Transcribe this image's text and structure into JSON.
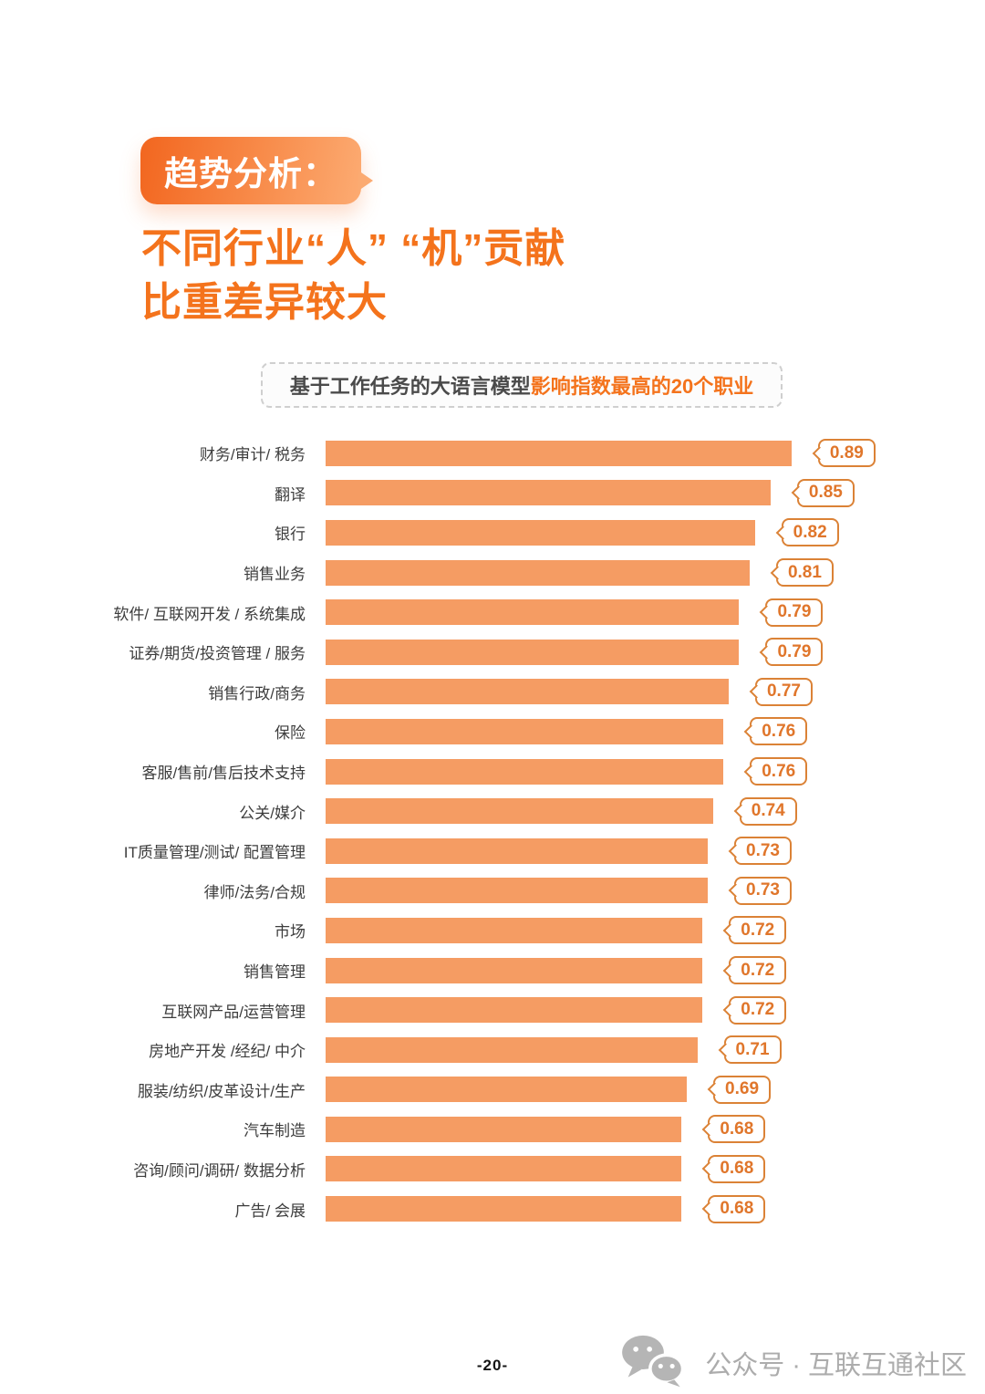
{
  "header": {
    "badge_label": "趋势分析：",
    "title_line1": "不同行业“人” “机”贡献",
    "title_line2": "比重差异较大"
  },
  "subtitle": {
    "prefix": "基于工作任务的大语言模型",
    "highlight": "影响指数最高的20个职业"
  },
  "chart_data": {
    "type": "bar",
    "orientation": "horizontal",
    "title": "基于工作任务的大语言模型影响指数最高的20个职业",
    "xlabel": "",
    "ylabel": "",
    "xlim": [
      0,
      0.95
    ],
    "grid": false,
    "axes_hidden": true,
    "value_labels": "badge right of each bar",
    "categories": [
      "财务/审计/ 税务",
      "翻译",
      "银行",
      "销售业务",
      "软件/ 互联网开发 / 系统集成",
      "证券/期货/投资管理 / 服务",
      "销售行政/商务",
      "保险",
      "客服/售前/售后技术支持",
      "公关/媒介",
      "IT质量管理/测试/ 配置管理",
      "律师/法务/合规",
      "市场",
      "销售管理",
      "互联网产品/运营管理",
      "房地产开发 /经纪/ 中介",
      "服装/纺织/皮革设计/生产",
      "汽车制造",
      "咨询/顾问/调研/ 数据分析",
      "广告/ 会展"
    ],
    "values": [
      0.89,
      0.85,
      0.82,
      0.81,
      0.79,
      0.79,
      0.77,
      0.76,
      0.76,
      0.74,
      0.73,
      0.73,
      0.72,
      0.72,
      0.72,
      0.71,
      0.69,
      0.68,
      0.68,
      0.68
    ]
  },
  "footer": {
    "page_number": "-20-",
    "wechat_label": "公众号 · 互联互通社区"
  },
  "colors": {
    "accent_orange": "#f4731c",
    "bar_fill": "#f59c63",
    "badge_border": "#db8236",
    "badge_text": "#e0762b",
    "label_text": "#3d3d3d",
    "footer_gray": "#acacac",
    "badge_gradient_start": "#f2661f",
    "badge_gradient_end": "#fcab72"
  }
}
